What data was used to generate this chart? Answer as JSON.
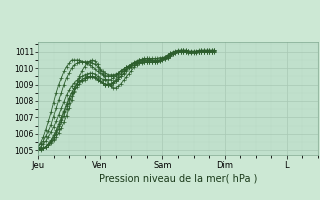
{
  "xlabel": "Pression niveau de la mer( hPa )",
  "bg_color": "#cce8d4",
  "plot_bg_color": "#c0e0cc",
  "grid_major_color": "#a8c8b4",
  "grid_minor_color": "#b8d8c4",
  "line_color": "#2d5e2d",
  "ylim": [
    1004.7,
    1011.6
  ],
  "yticks": [
    1005,
    1006,
    1007,
    1008,
    1009,
    1010,
    1011
  ],
  "day_labels": [
    "Jeu",
    "Ven",
    "Sam",
    "Dim",
    "L"
  ],
  "day_positions": [
    0,
    24,
    48,
    72,
    96
  ],
  "total_hours": 108,
  "lines": [
    [
      1005.1,
      1005.1,
      1005.15,
      1005.2,
      1005.3,
      1005.45,
      1005.6,
      1005.8,
      1006.05,
      1006.35,
      1006.7,
      1007.1,
      1007.55,
      1008.05,
      1008.55,
      1009.05,
      1009.5,
      1009.85,
      1010.1,
      1010.3,
      1010.45,
      1010.5,
      1010.45,
      1010.25,
      1009.95,
      1009.65,
      1009.35,
      1009.1,
      1008.9,
      1008.8,
      1008.8,
      1008.9,
      1009.05,
      1009.25,
      1009.45,
      1009.65,
      1009.85,
      1010.05,
      1010.2,
      1010.4,
      1010.5,
      1010.55,
      1010.6,
      1010.55,
      1010.5,
      1010.45,
      1010.45,
      1010.45,
      1010.5,
      1010.55,
      1010.65,
      1010.75,
      1010.85,
      1010.95,
      1011.05,
      1011.1,
      1011.1,
      1011.05,
      1011.0,
      1011.0,
      1011.0,
      1011.0,
      1011.05,
      1011.1,
      1011.1,
      1011.1,
      1011.1,
      1011.1,
      1011.1
    ],
    [
      1005.05,
      1005.05,
      1005.1,
      1005.2,
      1005.35,
      1005.55,
      1005.8,
      1006.1,
      1006.45,
      1006.85,
      1007.3,
      1007.7,
      1008.1,
      1008.5,
      1008.8,
      1009.05,
      1009.2,
      1009.3,
      1009.4,
      1009.5,
      1009.5,
      1009.5,
      1009.45,
      1009.3,
      1009.2,
      1009.1,
      1009.0,
      1009.0,
      1009.0,
      1009.1,
      1009.2,
      1009.35,
      1009.5,
      1009.7,
      1009.9,
      1010.05,
      1010.2,
      1010.3,
      1010.4,
      1010.5,
      1010.5,
      1010.5,
      1010.5,
      1010.5,
      1010.5,
      1010.5,
      1010.5,
      1010.5,
      1010.55,
      1010.6,
      1010.7,
      1010.8,
      1010.9,
      1011.0,
      1011.0,
      1011.05,
      1011.1,
      1011.1,
      1011.05,
      1011.0,
      1011.0,
      1011.0,
      1011.0,
      1011.0,
      1011.0,
      1011.0,
      1011.0,
      1011.0,
      1011.05
    ],
    [
      1005.05,
      1005.05,
      1005.1,
      1005.2,
      1005.3,
      1005.5,
      1005.7,
      1006.0,
      1006.3,
      1006.7,
      1007.1,
      1007.5,
      1007.9,
      1008.3,
      1008.6,
      1008.85,
      1009.05,
      1009.2,
      1009.3,
      1009.4,
      1009.45,
      1009.45,
      1009.4,
      1009.3,
      1009.2,
      1009.1,
      1009.0,
      1009.0,
      1009.0,
      1009.1,
      1009.2,
      1009.35,
      1009.5,
      1009.65,
      1009.85,
      1010.0,
      1010.1,
      1010.2,
      1010.3,
      1010.4,
      1010.4,
      1010.4,
      1010.4,
      1010.4,
      1010.4,
      1010.4,
      1010.45,
      1010.5,
      1010.55,
      1010.65,
      1010.75,
      1010.85,
      1010.9,
      1011.0,
      1011.0,
      1011.0,
      1011.0,
      1011.0,
      1010.95,
      1010.9,
      1010.95,
      1010.95,
      1011.0,
      1011.0,
      1011.0,
      1011.0,
      1011.0,
      1011.0,
      1011.0
    ],
    [
      1005.0,
      1005.0,
      1005.1,
      1005.2,
      1005.4,
      1005.6,
      1005.9,
      1006.2,
      1006.6,
      1007.0,
      1007.4,
      1007.8,
      1008.2,
      1008.5,
      1008.8,
      1009.0,
      1009.2,
      1009.3,
      1009.4,
      1009.45,
      1009.5,
      1009.5,
      1009.45,
      1009.35,
      1009.2,
      1009.1,
      1009.0,
      1009.0,
      1009.05,
      1009.15,
      1009.3,
      1009.45,
      1009.65,
      1009.8,
      1009.95,
      1010.1,
      1010.2,
      1010.3,
      1010.4,
      1010.5,
      1010.5,
      1010.5,
      1010.5,
      1010.5,
      1010.5,
      1010.5,
      1010.5,
      1010.5,
      1010.55,
      1010.6,
      1010.7,
      1010.8,
      1010.9,
      1011.0,
      1011.0,
      1011.0,
      1011.0,
      1011.0,
      1011.0,
      1011.0,
      1011.0,
      1011.0,
      1011.0,
      1011.0,
      1011.0,
      1011.0,
      1011.0,
      1011.0,
      1011.0
    ],
    [
      1005.1,
      1005.2,
      1005.35,
      1005.55,
      1005.8,
      1006.1,
      1006.4,
      1006.75,
      1007.15,
      1007.55,
      1007.95,
      1008.35,
      1008.65,
      1008.9,
      1009.1,
      1009.25,
      1009.4,
      1009.5,
      1009.6,
      1009.65,
      1009.7,
      1009.7,
      1009.65,
      1009.5,
      1009.4,
      1009.3,
      1009.3,
      1009.3,
      1009.3,
      1009.4,
      1009.5,
      1009.65,
      1009.8,
      1009.9,
      1010.05,
      1010.15,
      1010.25,
      1010.35,
      1010.45,
      1010.5,
      1010.55,
      1010.6,
      1010.6,
      1010.6,
      1010.6,
      1010.6,
      1010.6,
      1010.65,
      1010.65,
      1010.7,
      1010.8,
      1010.9,
      1011.0,
      1011.05,
      1011.1,
      1011.1,
      1011.1,
      1011.1,
      1011.05,
      1011.05,
      1011.05,
      1011.05,
      1011.1,
      1011.1,
      1011.1,
      1011.1,
      1011.1,
      1011.1,
      1011.1
    ],
    [
      1005.2,
      1005.35,
      1005.55,
      1005.85,
      1006.15,
      1006.55,
      1007.05,
      1007.55,
      1008.05,
      1008.5,
      1009.0,
      1009.4,
      1009.7,
      1010.0,
      1010.2,
      1010.3,
      1010.4,
      1010.4,
      1010.4,
      1010.4,
      1010.4,
      1010.3,
      1010.25,
      1010.1,
      1009.9,
      1009.8,
      1009.7,
      1009.6,
      1009.6,
      1009.6,
      1009.65,
      1009.7,
      1009.85,
      1009.95,
      1010.05,
      1010.15,
      1010.2,
      1010.3,
      1010.35,
      1010.4,
      1010.4,
      1010.4,
      1010.4,
      1010.4,
      1010.4,
      1010.4,
      1010.4,
      1010.45,
      1010.5,
      1010.55,
      1010.65,
      1010.75,
      1010.85,
      1010.9,
      1011.0,
      1011.0,
      1011.0,
      1011.0,
      1011.0,
      1011.0,
      1011.0,
      1011.0,
      1011.0,
      1011.0,
      1011.0,
      1011.0,
      1011.0,
      1011.0,
      1011.05
    ],
    [
      1005.2,
      1005.45,
      1005.8,
      1006.25,
      1006.75,
      1007.3,
      1007.9,
      1008.5,
      1009.0,
      1009.4,
      1009.8,
      1010.1,
      1010.3,
      1010.5,
      1010.5,
      1010.5,
      1010.5,
      1010.4,
      1010.35,
      1010.3,
      1010.2,
      1010.1,
      1009.95,
      1009.8,
      1009.7,
      1009.6,
      1009.55,
      1009.5,
      1009.5,
      1009.5,
      1009.6,
      1009.7,
      1009.85,
      1009.95,
      1010.05,
      1010.1,
      1010.15,
      1010.2,
      1010.25,
      1010.3,
      1010.3,
      1010.35,
      1010.35,
      1010.35,
      1010.35,
      1010.35,
      1010.4,
      1010.5,
      1010.6,
      1010.7,
      1010.8,
      1010.9,
      1010.95,
      1011.0,
      1011.05,
      1011.05,
      1011.05,
      1011.05,
      1011.05,
      1011.0,
      1011.0,
      1011.0,
      1011.0,
      1011.05,
      1011.05,
      1011.05,
      1011.05,
      1011.05,
      1011.1
    ]
  ]
}
